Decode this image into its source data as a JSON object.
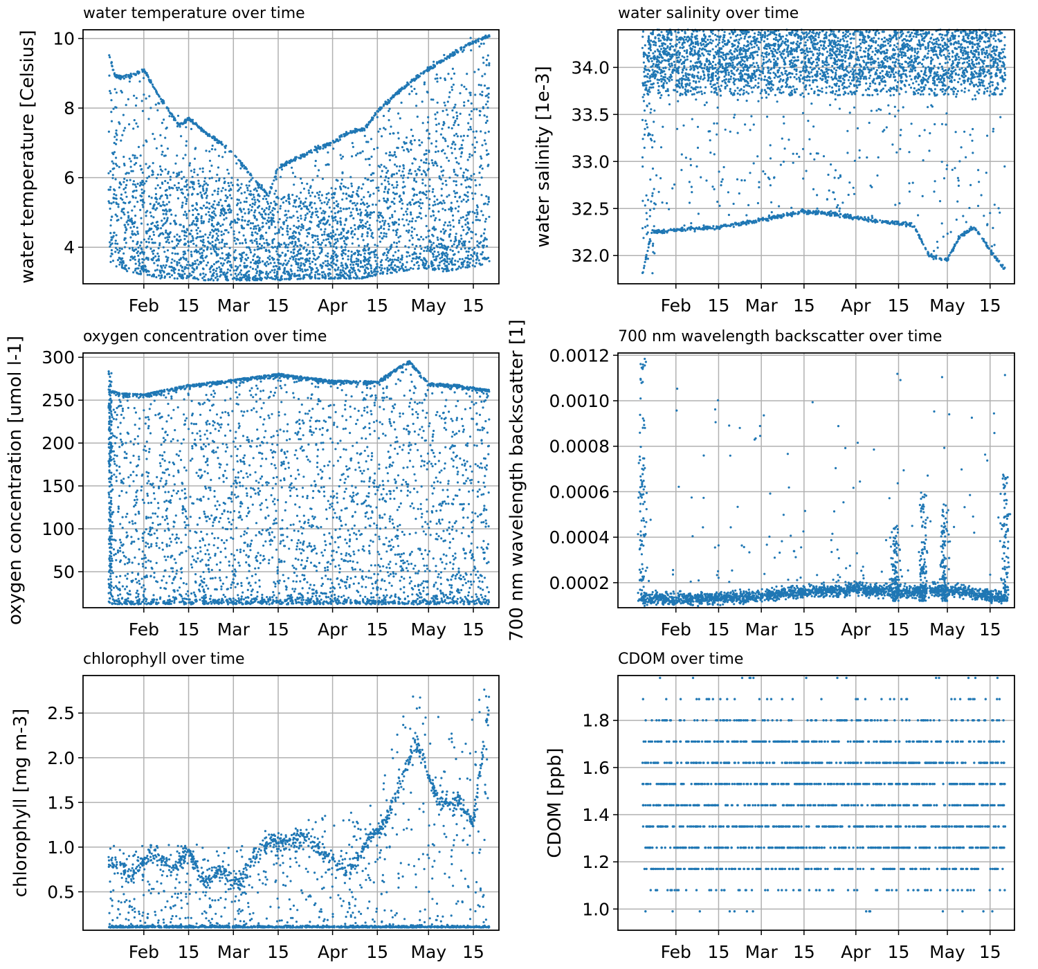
{
  "figure": {
    "marker_color": "#1f77b4",
    "grid_color": "#b0b0b0",
    "grid": true,
    "x_tick_labels": [
      "Feb",
      "15",
      "Mar",
      "15",
      "Apr",
      "15",
      "May",
      "15"
    ]
  },
  "chart_data": [
    {
      "id": "temperature",
      "type": "scatter",
      "title": "water temperature over time",
      "xlabel": "",
      "ylabel": "water temperature [Celsius]",
      "x_range": [
        "2021-01-13",
        "2021-05-23"
      ],
      "ylim": [
        2.95,
        10.25
      ],
      "yticks": [
        4,
        6,
        8,
        10
      ],
      "ytick_labels": [
        "4",
        "6",
        "8",
        "10"
      ],
      "data_span": [
        "2021-01-21",
        "2021-05-20"
      ],
      "envelope": {
        "dates": [
          "2021-01-21",
          "2021-01-22",
          "2021-01-27",
          "2021-02-01",
          "2021-02-06",
          "2021-02-15",
          "2021-02-20",
          "2021-03-01",
          "2021-03-10",
          "2021-03-13",
          "2021-03-15",
          "2021-03-24",
          "2021-04-01",
          "2021-04-10",
          "2021-04-15",
          "2021-04-22",
          "2021-04-29",
          "2021-05-06",
          "2021-05-13",
          "2021-05-18",
          "2021-05-20"
        ],
        "upper": [
          9.7,
          9.0,
          8.9,
          9.1,
          8.3,
          7.6,
          7.4,
          6.7,
          5.8,
          5.5,
          6.2,
          6.6,
          7.0,
          7.2,
          8.0,
          8.7,
          9.2,
          9.6,
          10.0,
          10.2,
          10.2
        ],
        "lower": [
          3.7,
          3.5,
          3.3,
          3.2,
          3.1,
          3.1,
          3.05,
          3.05,
          3.05,
          3.1,
          3.05,
          3.1,
          3.1,
          3.1,
          3.2,
          3.3,
          3.4,
          3.3,
          3.4,
          3.5,
          3.6
        ],
        "dense_upper": [
          9.5,
          8.6,
          7.0,
          6.6,
          6.3,
          6.2,
          6.0,
          6.0,
          5.6,
          5.4,
          5.5,
          5.6,
          5.7,
          5.9,
          6.3,
          7.0,
          7.6,
          8.2,
          8.8,
          9.4,
          9.6
        ]
      },
      "trace": {
        "dates": [
          "2021-01-21",
          "2021-01-23",
          "2021-01-27",
          "2021-02-01",
          "2021-02-06",
          "2021-02-12",
          "2021-02-15",
          "2021-02-20",
          "2021-02-25",
          "2021-03-01",
          "2021-03-08",
          "2021-03-12",
          "2021-03-15",
          "2021-03-20",
          "2021-03-26",
          "2021-04-01",
          "2021-04-06",
          "2021-04-11",
          "2021-04-15",
          "2021-04-22",
          "2021-04-29",
          "2021-05-06",
          "2021-05-13",
          "2021-05-20"
        ],
        "values": [
          9.6,
          8.9,
          8.9,
          9.1,
          8.3,
          7.5,
          7.7,
          7.3,
          7.0,
          6.7,
          5.9,
          5.5,
          6.3,
          6.5,
          6.8,
          7.0,
          7.3,
          7.4,
          7.9,
          8.5,
          9.0,
          9.4,
          9.8,
          10.1
        ]
      },
      "gap_dates": [
        "2021-04-26",
        "2021-05-19"
      ]
    },
    {
      "id": "salinity",
      "type": "scatter",
      "title": "water salinity over time",
      "xlabel": "",
      "ylabel": "water salinity [1e-3]",
      "x_range": [
        "2021-01-13",
        "2021-05-23"
      ],
      "ylim": [
        31.7,
        34.4
      ],
      "yticks": [
        32.0,
        32.5,
        33.0,
        33.5,
        34.0
      ],
      "ytick_labels": [
        "32.0",
        "32.5",
        "33.0",
        "33.5",
        "34.0"
      ],
      "data_span": [
        "2021-01-21",
        "2021-05-20"
      ],
      "band": {
        "low": 33.7,
        "high": 34.4,
        "dense_low": 33.85
      },
      "trace": {
        "dates": [
          "2021-01-21",
          "2021-01-24",
          "2021-02-01",
          "2021-02-15",
          "2021-03-01",
          "2021-03-15",
          "2021-03-25",
          "2021-04-01",
          "2021-04-10",
          "2021-04-20",
          "2021-04-25",
          "2021-05-01",
          "2021-05-05",
          "2021-05-10",
          "2021-05-15",
          "2021-05-20"
        ],
        "values": [
          31.8,
          32.25,
          32.27,
          32.3,
          32.38,
          32.47,
          32.44,
          32.4,
          32.36,
          32.32,
          32.0,
          31.95,
          32.2,
          32.3,
          32.05,
          31.85
        ]
      }
    },
    {
      "id": "oxygen",
      "type": "scatter",
      "title": "oxygen concentration over time",
      "xlabel": "",
      "ylabel": "oxygen concentration [umol l-1]",
      "x_range": [
        "2021-01-13",
        "2021-05-23"
      ],
      "ylim": [
        8,
        305
      ],
      "yticks": [
        50,
        100,
        150,
        200,
        250,
        300
      ],
      "ytick_labels": [
        "50",
        "100",
        "150",
        "200",
        "250",
        "300"
      ],
      "data_span": [
        "2021-01-21",
        "2021-05-20"
      ],
      "envelope": {
        "dates": [
          "2021-01-21",
          "2021-01-25",
          "2021-02-01",
          "2021-02-15",
          "2021-03-01",
          "2021-03-15",
          "2021-04-01",
          "2021-04-15",
          "2021-04-20",
          "2021-04-25",
          "2021-05-01",
          "2021-05-10",
          "2021-05-20"
        ],
        "upper": [
          262,
          258,
          257,
          268,
          274,
          281,
          273,
          272,
          285,
          296,
          270,
          268,
          262
        ],
        "lower": [
          12,
          12,
          12,
          12,
          12,
          12,
          12,
          12,
          12,
          12,
          12,
          12,
          12
        ]
      },
      "spike_dates": [
        "2021-01-21",
        "2021-01-22"
      ]
    },
    {
      "id": "backscatter",
      "type": "scatter",
      "title": "700 nm wavelength backscatter over time",
      "xlabel": "",
      "ylabel": "700 nm wavelength backscatter [1]",
      "x_range": [
        "2021-01-13",
        "2021-05-23"
      ],
      "ylim": [
        9e-05,
        0.00121
      ],
      "yticks": [
        0.0002,
        0.0004,
        0.0006,
        0.0008,
        0.001,
        0.0012
      ],
      "ytick_labels": [
        "0.0002",
        "0.0004",
        "0.0006",
        "0.0008",
        "0.0010",
        "0.0012"
      ],
      "data_span": [
        "2021-01-21",
        "2021-05-20"
      ],
      "baseline": {
        "dates": [
          "2021-01-21",
          "2021-02-15",
          "2021-03-15",
          "2021-04-01",
          "2021-04-15",
          "2021-05-01",
          "2021-05-20"
        ],
        "values": [
          0.00013,
          0.00013,
          0.00016,
          0.00017,
          0.00016,
          0.00017,
          0.00013
        ]
      },
      "bursts": [
        {
          "date": "2021-01-21",
          "max": 0.0012
        },
        {
          "date": "2021-04-14",
          "max": 0.00045
        },
        {
          "date": "2021-04-23",
          "max": 0.0006
        },
        {
          "date": "2021-04-30",
          "max": 0.00055
        },
        {
          "date": "2021-05-20",
          "max": 0.0007
        }
      ]
    },
    {
      "id": "chlorophyll",
      "type": "scatter",
      "title": "chlorophyll over time",
      "xlabel": "",
      "ylabel": "chlorophyll [mg m-3]",
      "x_range": [
        "2021-01-13",
        "2021-05-23"
      ],
      "ylim": [
        0.07,
        2.92
      ],
      "yticks": [
        0.5,
        1.0,
        1.5,
        2.0,
        2.5
      ],
      "ytick_labels": [
        "0.5",
        "1.0",
        "1.5",
        "2.0",
        "2.5"
      ],
      "data_span": [
        "2021-01-21",
        "2021-05-20"
      ],
      "baseline": 0.1,
      "trace": {
        "dates": [
          "2021-01-21",
          "2021-01-28",
          "2021-02-04",
          "2021-02-10",
          "2021-02-15",
          "2021-02-20",
          "2021-02-25",
          "2021-03-03",
          "2021-03-10",
          "2021-03-17",
          "2021-03-24",
          "2021-04-01",
          "2021-04-06",
          "2021-04-12",
          "2021-04-17",
          "2021-04-22",
          "2021-04-27",
          "2021-05-04",
          "2021-05-10",
          "2021-05-15",
          "2021-05-20"
        ],
        "values": [
          0.85,
          0.7,
          0.95,
          0.75,
          0.95,
          0.6,
          0.75,
          0.6,
          1.05,
          1.05,
          1.1,
          0.85,
          0.7,
          1.1,
          1.25,
          1.7,
          2.2,
          1.5,
          1.5,
          1.3,
          2.6
        ]
      },
      "scatter_max": {
        "dates": [
          "2021-01-21",
          "2021-03-01",
          "2021-04-01",
          "2021-04-15",
          "2021-04-25",
          "2021-05-10",
          "2021-05-20"
        ],
        "values": [
          1.1,
          1.0,
          1.4,
          1.5,
          2.85,
          2.2,
          2.9
        ]
      }
    },
    {
      "id": "cdom",
      "type": "scatter",
      "title": "CDOM over time",
      "xlabel": "",
      "ylabel": "CDOM [ppb]",
      "x_range": [
        "2021-01-13",
        "2021-05-23"
      ],
      "ylim": [
        0.91,
        1.99
      ],
      "yticks": [
        1.0,
        1.2,
        1.4,
        1.6,
        1.8
      ],
      "ytick_labels": [
        "1.0",
        "1.2",
        "1.4",
        "1.6",
        "1.8"
      ],
      "data_span": [
        "2021-01-21",
        "2021-05-20"
      ],
      "levels": [
        0.99,
        1.08,
        1.17,
        1.26,
        1.35,
        1.44,
        1.53,
        1.62,
        1.71,
        1.8,
        1.89,
        1.98
      ],
      "level_density": [
        0.03,
        0.25,
        0.7,
        1.0,
        1.0,
        1.0,
        1.0,
        1.0,
        0.95,
        0.45,
        0.12,
        0.03
      ]
    }
  ]
}
